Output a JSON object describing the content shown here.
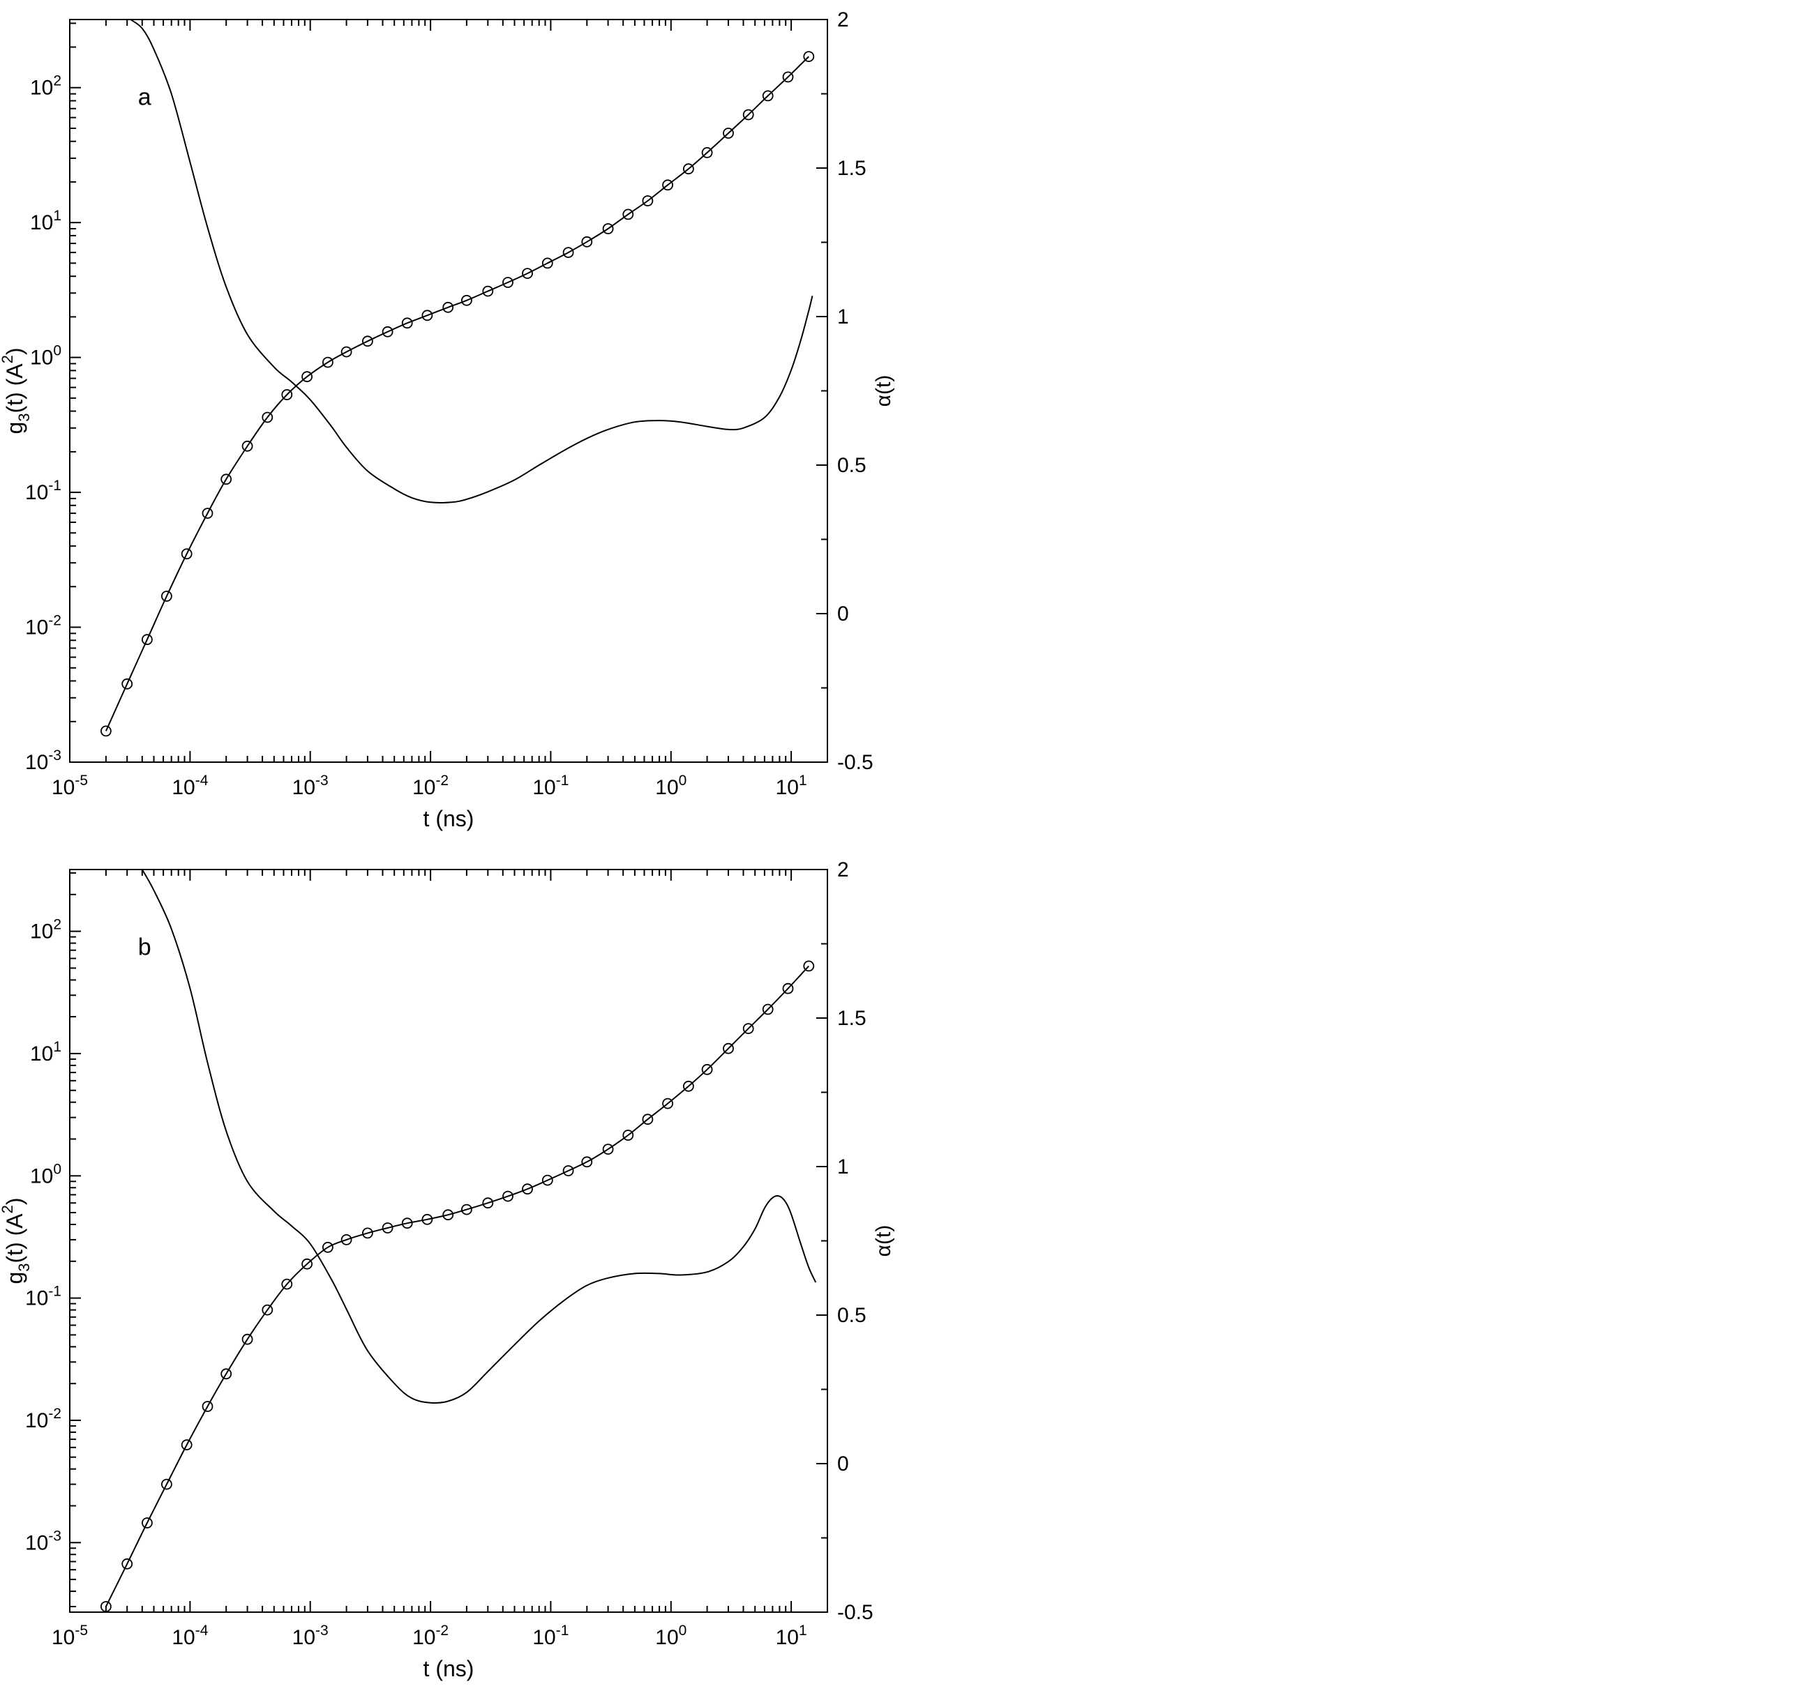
{
  "background": "#ffffff",
  "chart_data": [
    {
      "type": "line",
      "panel_label": "a",
      "line_color": "#000000",
      "xlabel": "t (ns)",
      "x_axis": {
        "scale": "log",
        "min": 1e-05,
        "max": 20,
        "tick_exponents": [
          -5,
          -4,
          -3,
          -2,
          -1,
          0,
          1
        ]
      },
      "y_left": {
        "scale": "log",
        "min": 0.001,
        "max": 320,
        "tick_exponents": [
          -3,
          -2,
          -1,
          0,
          1,
          2
        ],
        "label_parts": [
          {
            "t": "g"
          },
          {
            "t": "3",
            "v": "sub"
          },
          {
            "t": "(t) (A"
          },
          {
            "t": "2",
            "v": "sup"
          },
          {
            "t": ")"
          }
        ]
      },
      "y_right": {
        "scale": "linear",
        "min": -0.5,
        "max": 2,
        "ticks": [
          -0.5,
          0,
          0.5,
          1,
          1.5,
          2
        ],
        "tick_labels": [
          "-0.5",
          "0",
          "0.5",
          "1",
          "1.5",
          "2"
        ],
        "minor_step": 0.25,
        "label": "α(t)"
      },
      "series": [
        {
          "name": "g3",
          "axis": "left",
          "marker": "circle",
          "line": true,
          "t": [
            2e-05,
            3e-05,
            4.4e-05,
            6.4e-05,
            9.4e-05,
            0.00014,
            0.0002,
            0.0003,
            0.00044,
            0.00064,
            0.00094,
            0.0014,
            0.002,
            0.003,
            0.0044,
            0.0064,
            0.0094,
            0.014,
            0.02,
            0.03,
            0.044,
            0.064,
            0.094,
            0.14,
            0.2,
            0.3,
            0.44,
            0.64,
            0.94,
            1.4,
            2,
            3,
            4.4,
            6.4,
            9.4,
            14
          ],
          "y": [
            0.0017,
            0.0038,
            0.0081,
            0.017,
            0.035,
            0.07,
            0.125,
            0.22,
            0.36,
            0.53,
            0.72,
            0.92,
            1.1,
            1.32,
            1.55,
            1.8,
            2.05,
            2.35,
            2.65,
            3.1,
            3.6,
            4.2,
            5.0,
            6.0,
            7.2,
            9.0,
            11.5,
            14.5,
            19,
            25,
            33,
            46,
            63,
            87,
            120,
            170
          ]
        },
        {
          "name": "alpha",
          "axis": "right",
          "marker": "none",
          "line": true,
          "t": [
            3.2e-05,
            4e-05,
            5e-05,
            7e-05,
            0.0001,
            0.00014,
            0.0002,
            0.0003,
            0.0005,
            0.0007,
            0.001,
            0.0015,
            0.002,
            0.003,
            0.005,
            0.007,
            0.01,
            0.015,
            0.02,
            0.03,
            0.05,
            0.08,
            0.13,
            0.2,
            0.3,
            0.5,
            0.8,
            1.2,
            2,
            3,
            4,
            6,
            8,
            10,
            12,
            14,
            15
          ],
          "y": [
            2.0,
            1.97,
            1.9,
            1.75,
            1.52,
            1.3,
            1.1,
            0.94,
            0.83,
            0.78,
            0.72,
            0.63,
            0.56,
            0.48,
            0.42,
            0.39,
            0.375,
            0.375,
            0.385,
            0.41,
            0.45,
            0.5,
            0.55,
            0.59,
            0.62,
            0.645,
            0.65,
            0.645,
            0.63,
            0.62,
            0.625,
            0.66,
            0.73,
            0.82,
            0.92,
            1.02,
            1.07
          ]
        }
      ]
    },
    {
      "type": "line",
      "panel_label": "b",
      "line_color": "#000000",
      "xlabel": "t (ns)",
      "x_axis": {
        "scale": "log",
        "min": 1e-05,
        "max": 20,
        "tick_exponents": [
          -5,
          -4,
          -3,
          -2,
          -1,
          0,
          1
        ]
      },
      "y_left": {
        "scale": "log",
        "min": 0.00027,
        "max": 320,
        "tick_exponents": [
          -3,
          -2,
          -1,
          0,
          1,
          2
        ],
        "label_parts": [
          {
            "t": "g"
          },
          {
            "t": "3",
            "v": "sub"
          },
          {
            "t": "(t) (A"
          },
          {
            "t": "2",
            "v": "sup"
          },
          {
            "t": ")"
          }
        ]
      },
      "y_right": {
        "scale": "linear",
        "min": -0.5,
        "max": 2,
        "ticks": [
          -0.5,
          0,
          0.5,
          1,
          1.5,
          2
        ],
        "tick_labels": [
          "-0.5",
          "0",
          "0.5",
          "1",
          "1.5",
          "2"
        ],
        "minor_step": 0.25,
        "label": "α(t)"
      },
      "series": [
        {
          "name": "g3",
          "axis": "left",
          "marker": "circle",
          "line": true,
          "t": [
            2e-05,
            3e-05,
            4.4e-05,
            6.4e-05,
            9.4e-05,
            0.00014,
            0.0002,
            0.0003,
            0.00044,
            0.00064,
            0.00094,
            0.0014,
            0.002,
            0.003,
            0.0044,
            0.0064,
            0.0094,
            0.014,
            0.02,
            0.03,
            0.044,
            0.064,
            0.094,
            0.14,
            0.2,
            0.3,
            0.44,
            0.64,
            0.94,
            1.4,
            2,
            3,
            4.4,
            6.4,
            9.4,
            14
          ],
          "y": [
            0.0003,
            0.00067,
            0.00145,
            0.003,
            0.0063,
            0.013,
            0.024,
            0.046,
            0.08,
            0.13,
            0.19,
            0.26,
            0.3,
            0.34,
            0.375,
            0.41,
            0.44,
            0.48,
            0.53,
            0.6,
            0.68,
            0.78,
            0.92,
            1.1,
            1.3,
            1.65,
            2.15,
            2.9,
            3.9,
            5.4,
            7.4,
            11,
            16,
            23,
            34,
            52
          ]
        },
        {
          "name": "alpha",
          "axis": "right",
          "marker": "none",
          "line": true,
          "t": [
            4e-05,
            5e-05,
            7e-05,
            0.0001,
            0.00014,
            0.0002,
            0.0003,
            0.0005,
            0.0007,
            0.001,
            0.0015,
            0.002,
            0.003,
            0.005,
            0.007,
            0.01,
            0.014,
            0.02,
            0.03,
            0.05,
            0.08,
            0.13,
            0.2,
            0.3,
            0.5,
            0.8,
            1.2,
            2,
            3,
            4,
            5,
            6,
            7,
            8,
            9,
            10,
            12,
            14,
            16
          ],
          "y": [
            2.0,
            1.93,
            1.8,
            1.6,
            1.35,
            1.12,
            0.95,
            0.85,
            0.8,
            0.74,
            0.62,
            0.52,
            0.38,
            0.27,
            0.22,
            0.205,
            0.21,
            0.24,
            0.31,
            0.4,
            0.48,
            0.55,
            0.6,
            0.625,
            0.64,
            0.64,
            0.635,
            0.645,
            0.68,
            0.73,
            0.79,
            0.86,
            0.895,
            0.9,
            0.88,
            0.84,
            0.74,
            0.66,
            0.61
          ]
        }
      ]
    }
  ]
}
